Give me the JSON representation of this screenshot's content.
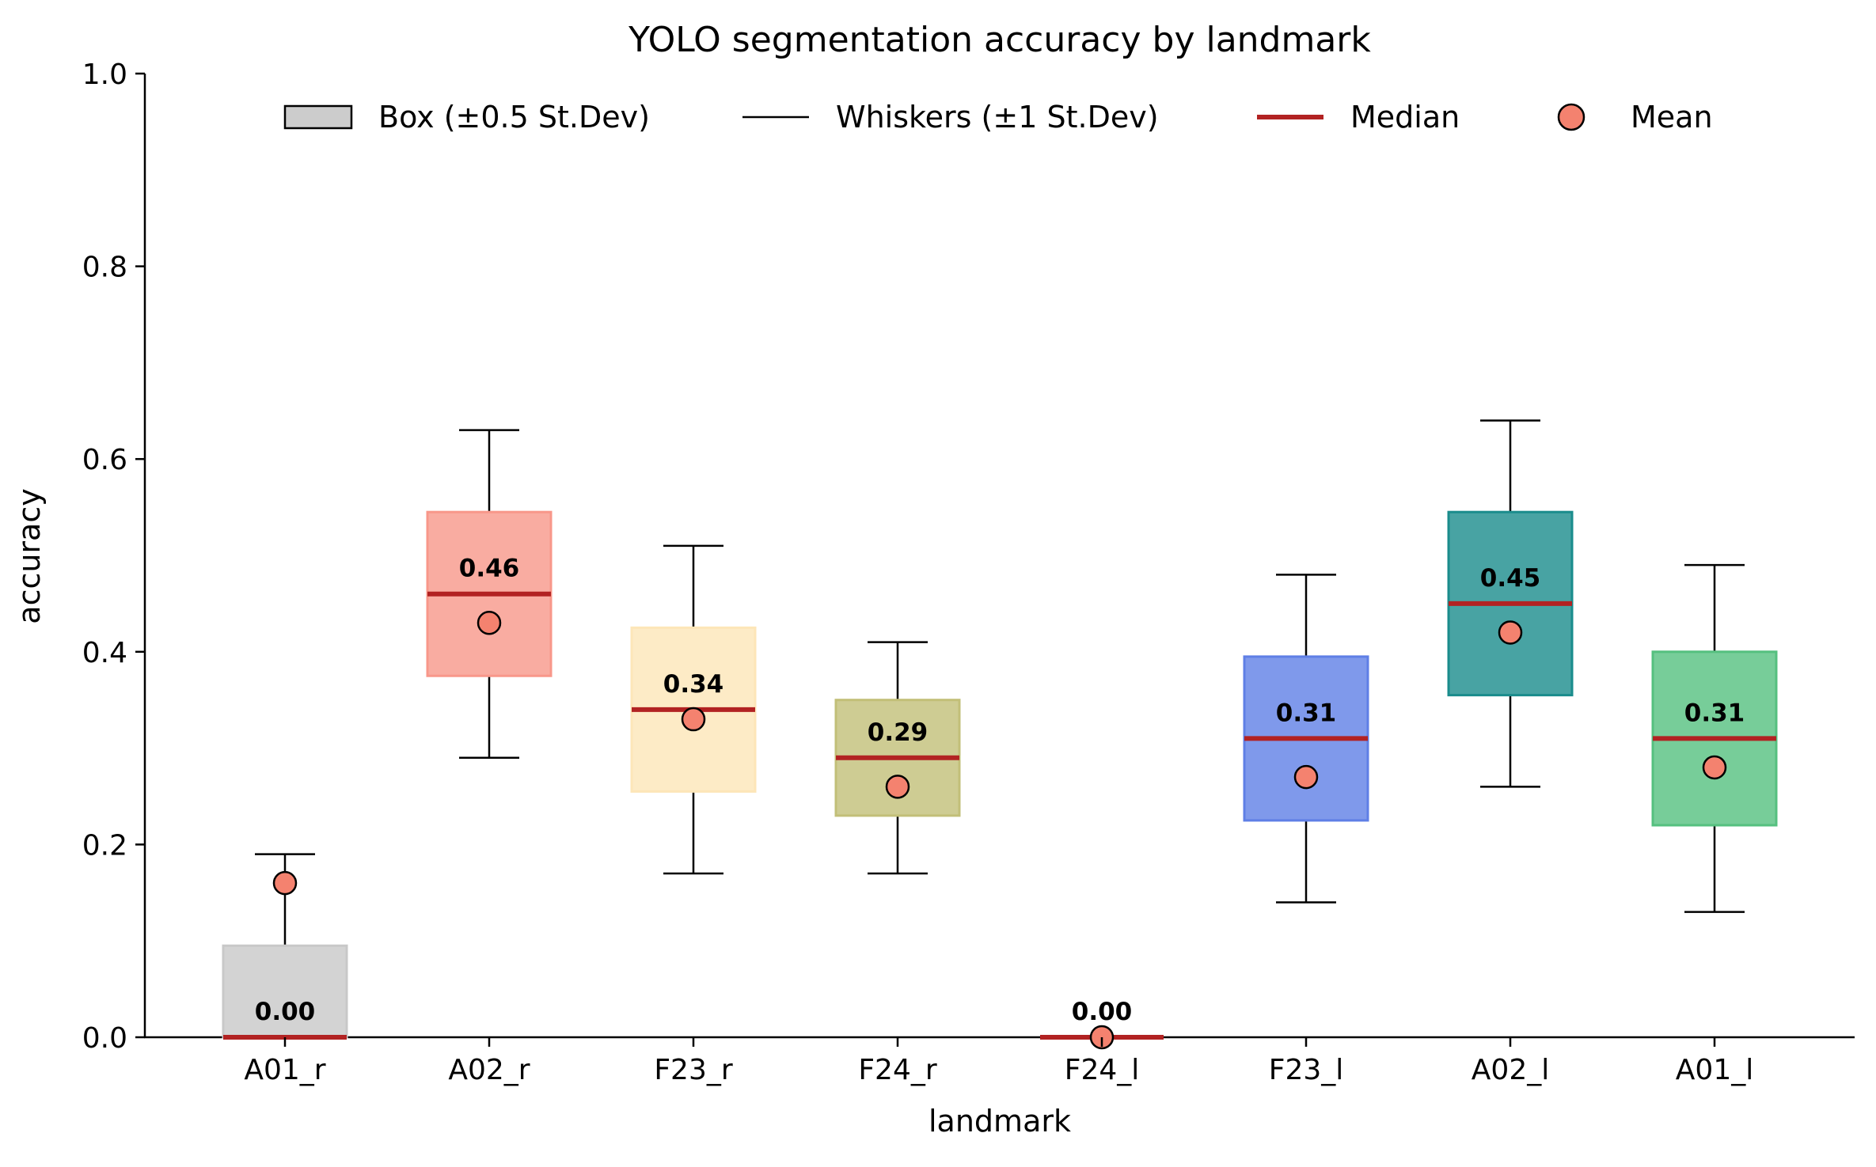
{
  "chart_data": {
    "type": "box",
    "title": "YOLO segmentation accuracy by landmark",
    "xlabel": "landmark",
    "ylabel": "accuracy",
    "ylim": [
      0,
      1.0
    ],
    "yticks": [
      0.0,
      0.2,
      0.4,
      0.6,
      0.8,
      1.0
    ],
    "ytick_labels": [
      "0.0",
      "0.2",
      "0.4",
      "0.6",
      "0.8",
      "1.0"
    ],
    "grid": false,
    "legend_position": "top",
    "legend": [
      {
        "key": "box",
        "label": "Box (±0.5 St.Dev)"
      },
      {
        "key": "whiskers",
        "label": "Whiskers (±1 St.Dev)"
      },
      {
        "key": "median",
        "label": "Median"
      },
      {
        "key": "mean",
        "label": "Mean"
      }
    ],
    "categories": [
      "A01_r",
      "A02_r",
      "F23_r",
      "F24_r",
      "F24_l",
      "F23_l",
      "A02_l",
      "A01_l"
    ],
    "median_labels": [
      "0.00",
      "0.46",
      "0.34",
      "0.29",
      "0.00",
      "0.31",
      "0.45",
      "0.31"
    ],
    "boxes": [
      {
        "name": "A01_r",
        "median": 0.0,
        "mean": 0.16,
        "box_low": 0.0,
        "box_high": 0.095,
        "whisker_low": 0.0,
        "whisker_high": 0.19,
        "color": "#c8c8c8"
      },
      {
        "name": "A02_r",
        "median": 0.46,
        "mean": 0.43,
        "box_low": 0.375,
        "box_high": 0.545,
        "whisker_low": 0.29,
        "whisker_high": 0.63,
        "color": "#f8978a"
      },
      {
        "name": "F23_r",
        "median": 0.34,
        "mean": 0.33,
        "box_low": 0.255,
        "box_high": 0.425,
        "whisker_low": 0.17,
        "whisker_high": 0.51,
        "color": "#fde6b8"
      },
      {
        "name": "F24_r",
        "median": 0.29,
        "mean": 0.26,
        "box_low": 0.23,
        "box_high": 0.35,
        "whisker_low": 0.17,
        "whisker_high": 0.41,
        "color": "#c2bf78"
      },
      {
        "name": "F24_l",
        "median": 0.0,
        "mean": 0.0,
        "box_low": 0.0,
        "box_high": 0.0,
        "whisker_low": 0.0,
        "whisker_high": 0.0,
        "color": "#dddddd"
      },
      {
        "name": "F23_l",
        "median": 0.31,
        "mean": 0.27,
        "box_low": 0.225,
        "box_high": 0.395,
        "whisker_low": 0.14,
        "whisker_high": 0.48,
        "color": "#5f7fe6"
      },
      {
        "name": "A02_l",
        "median": 0.45,
        "mean": 0.42,
        "box_low": 0.355,
        "box_high": 0.545,
        "whisker_low": 0.26,
        "whisker_high": 0.64,
        "color": "#1a8c8c"
      },
      {
        "name": "A01_l",
        "median": 0.31,
        "mean": 0.28,
        "box_low": 0.22,
        "box_high": 0.4,
        "whisker_low": 0.13,
        "whisker_high": 0.49,
        "color": "#55c07f"
      }
    ],
    "colors": {
      "median": "#b22222",
      "mean": "#f4826f",
      "legend_box": "#cccccc",
      "axis": "#000000"
    }
  }
}
